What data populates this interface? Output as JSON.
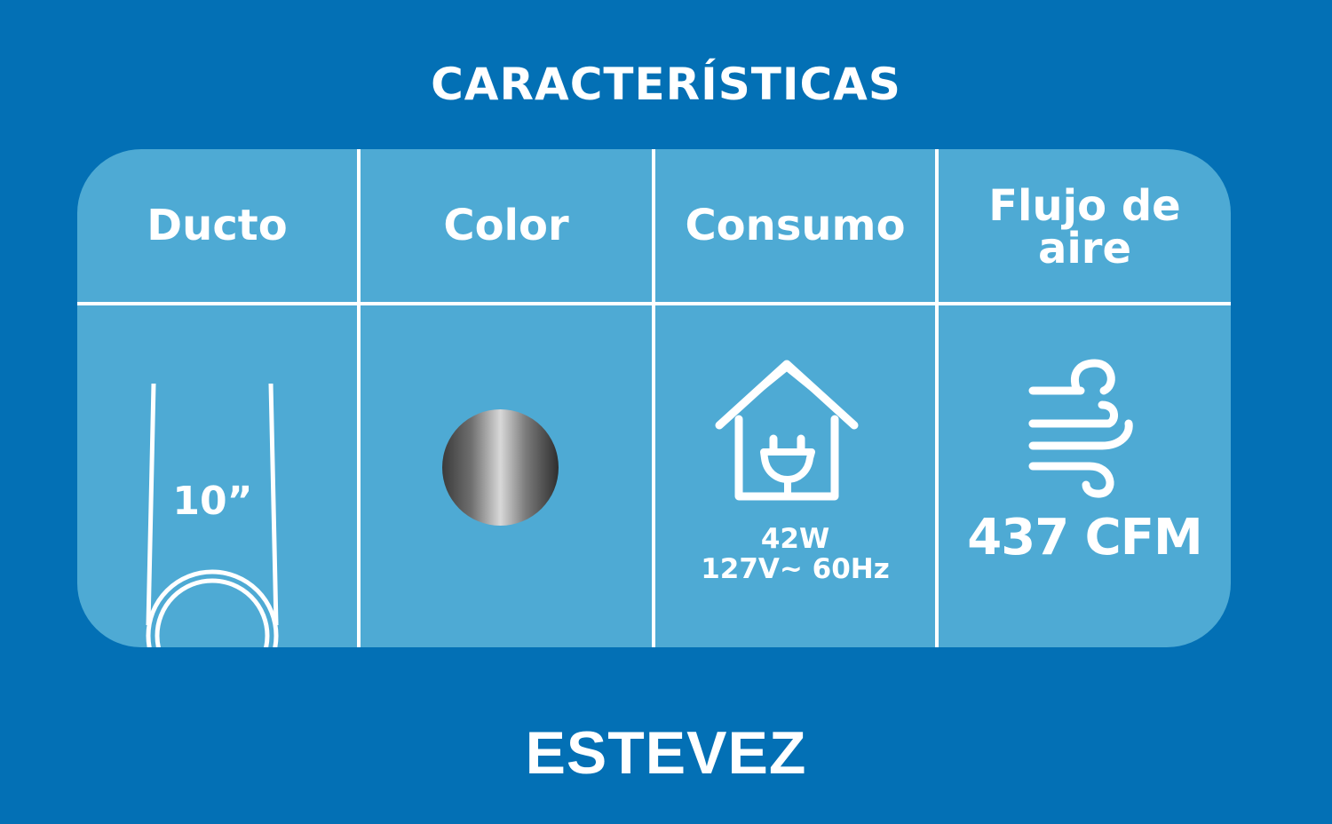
{
  "title": "CARACTERÍSTICAS",
  "columns": [
    {
      "header": "Ducto",
      "icon": "duct-icon",
      "value": "10”"
    },
    {
      "header": "Color",
      "icon": "chrome-swatch-icon",
      "value": ""
    },
    {
      "header": "Consumo",
      "icon": "house-plug-icon",
      "value": "42W",
      "value2": "127V~ 60Hz"
    },
    {
      "header": "Flujo de aire",
      "icon": "wind-icon",
      "value": "437 CFM"
    }
  ],
  "brand": "ESTEVEZ",
  "colors": {
    "background": "#0370b5",
    "panel": "#4eaad4",
    "text": "#ffffff"
  }
}
